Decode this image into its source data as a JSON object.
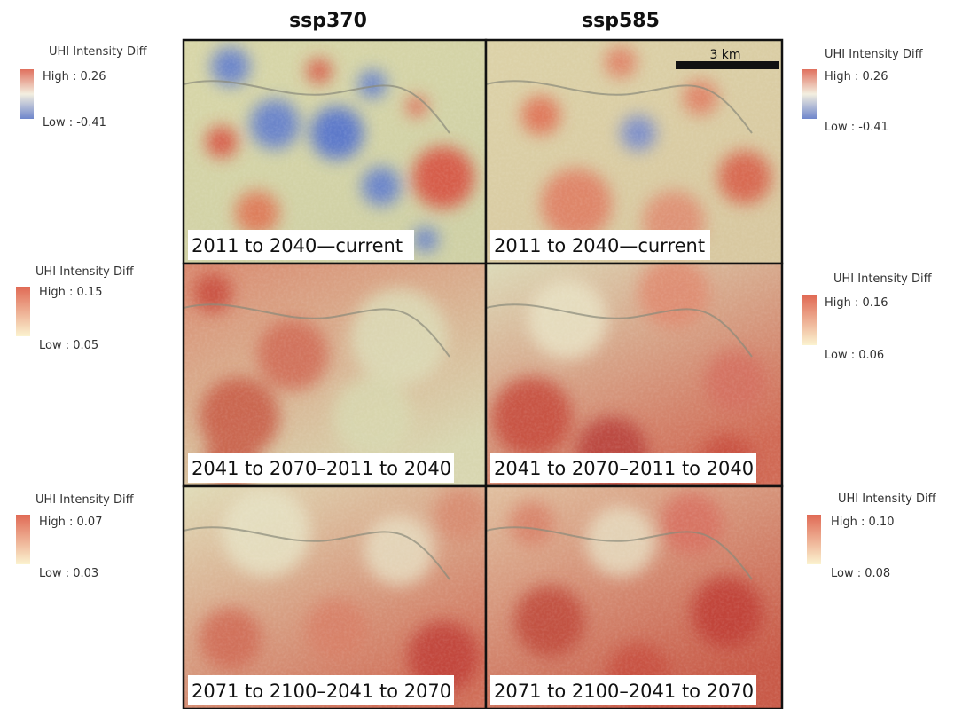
{
  "columns": [
    {
      "title": "ssp370"
    },
    {
      "title": "ssp585"
    }
  ],
  "scale_bar": "3 km",
  "panels": [
    {
      "label": "2011 to 2040—current",
      "legend": {
        "title": "UHI Intensity Diff",
        "high": "High : 0.26",
        "low": "Low : -0.41"
      }
    },
    {
      "label": "2011 to 2040—current",
      "legend": {
        "title": "UHI Intensity Diff",
        "high": "High : 0.26",
        "low": "Low : -0.41"
      }
    },
    {
      "label": "2041 to 2070–2011 to 2040",
      "legend": {
        "title": "UHI Intensity Diff",
        "high": "High : 0.15",
        "low": "Low : 0.05"
      }
    },
    {
      "label": "2041 to 2070–2011 to 2040",
      "legend": {
        "title": "UHI Intensity Diff",
        "high": "High : 0.16",
        "low": "Low : 0.06"
      }
    },
    {
      "label": "2071 to 2100–2041 to 2070",
      "legend": {
        "title": "UHI Intensity Diff",
        "high": "High : 0.07",
        "low": "Low : 0.03"
      }
    },
    {
      "label": "2071 to 2100–2041 to 2070",
      "legend": {
        "title": "UHI Intensity Diff",
        "high": "High : 0.10",
        "low": "Low : 0.08"
      }
    }
  ]
}
